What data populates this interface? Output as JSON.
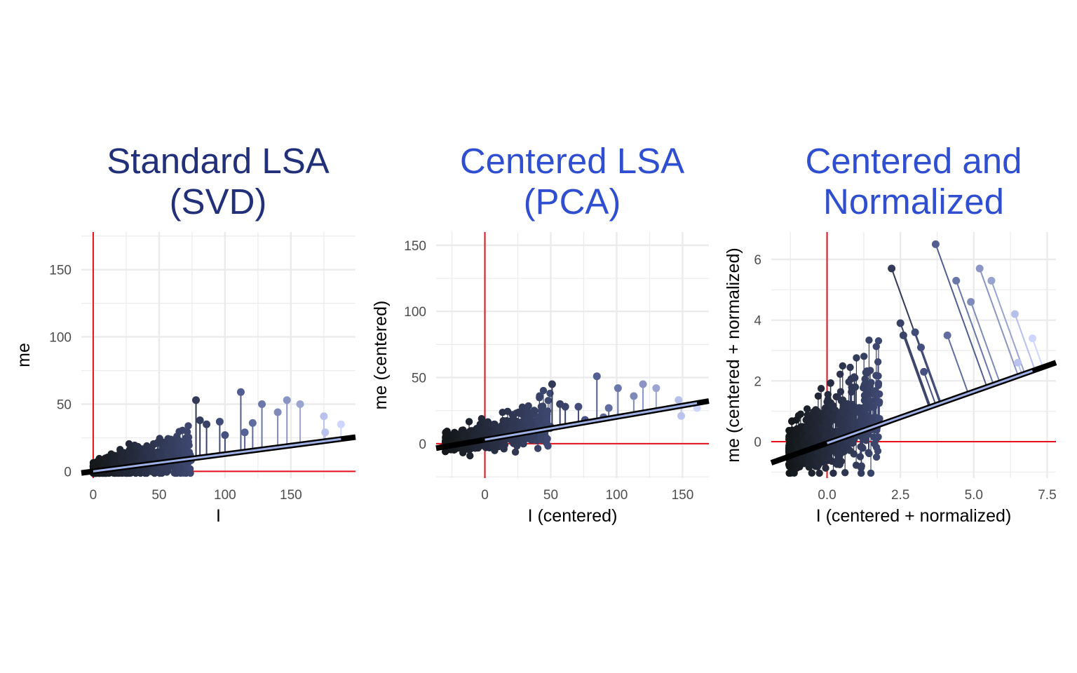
{
  "chart_data": [
    {
      "type": "scatter",
      "title": "Standard LSA\n(SVD)",
      "title_color": "#22307a",
      "xlabel": "I",
      "ylabel": "me",
      "xlim": [
        -9,
        199
      ],
      "ylim": [
        -5,
        178
      ],
      "xticks": [
        0,
        50,
        100,
        150
      ],
      "yticks": [
        0,
        50,
        100,
        150
      ],
      "reference_lines": {
        "x": 0,
        "y": 0,
        "color": "#e8101a"
      },
      "fit_line": {
        "slope": 0.128,
        "intercept": 0
      },
      "points_sample": [
        {
          "x": 78,
          "y": 53
        },
        {
          "x": 81,
          "y": 38
        },
        {
          "x": 86,
          "y": 35
        },
        {
          "x": 96,
          "y": 37
        },
        {
          "x": 100,
          "y": 27
        },
        {
          "x": 112,
          "y": 59
        },
        {
          "x": 115,
          "y": 29
        },
        {
          "x": 121,
          "y": 36
        },
        {
          "x": 128,
          "y": 50
        },
        {
          "x": 140,
          "y": 44
        },
        {
          "x": 147,
          "y": 53
        },
        {
          "x": 157,
          "y": 50
        },
        {
          "x": 175,
          "y": 41
        },
        {
          "x": 176,
          "y": 29
        },
        {
          "x": 188,
          "y": 35
        }
      ]
    },
    {
      "type": "scatter",
      "title": "Centered LSA\n(PCA)",
      "title_color": "#2f4fd0",
      "xlabel": "I (centered)",
      "ylabel": "me (centered)",
      "xlim": [
        -37,
        170
      ],
      "ylim": [
        -26,
        160
      ],
      "xticks": [
        0,
        50,
        100,
        150
      ],
      "yticks": [
        0,
        50,
        100,
        150
      ],
      "reference_lines": {
        "x": 0,
        "y": 0,
        "color": "#e8101a"
      },
      "fit_line": {
        "slope": 0.172,
        "intercept": 3
      },
      "points_sample": [
        {
          "x": 51,
          "y": 45
        },
        {
          "x": 57,
          "y": 30
        },
        {
          "x": 61,
          "y": 28
        },
        {
          "x": 71,
          "y": 28
        },
        {
          "x": 76,
          "y": 18
        },
        {
          "x": 85,
          "y": 51
        },
        {
          "x": 90,
          "y": 20
        },
        {
          "x": 94,
          "y": 27
        },
        {
          "x": 101,
          "y": 42
        },
        {
          "x": 113,
          "y": 36
        },
        {
          "x": 120,
          "y": 45
        },
        {
          "x": 130,
          "y": 42
        },
        {
          "x": 147,
          "y": 33
        },
        {
          "x": 149,
          "y": 21
        },
        {
          "x": 161,
          "y": 27
        }
      ]
    },
    {
      "type": "scatter",
      "title": "Centered and\nNormalized",
      "title_color": "#2f4fd0",
      "xlabel": "I (centered + normalized)",
      "ylabel": "me (centered + normalized)",
      "xlim": [
        -1.9,
        7.8
      ],
      "ylim": [
        -1.2,
        6.9
      ],
      "xticks": [
        0.0,
        2.5,
        5.0,
        7.5
      ],
      "xtick_labels": [
        "0.0",
        "2.5",
        "5.0",
        "7.5"
      ],
      "yticks": [
        0,
        2,
        4,
        6
      ],
      "reference_lines": {
        "x": 0,
        "y": 0,
        "color": "#e8101a"
      },
      "fit_line": {
        "slope": 0.34,
        "intercept": -0.05
      },
      "points_sample": [
        {
          "x": 2.2,
          "y": 5.7
        },
        {
          "x": 2.5,
          "y": 3.9
        },
        {
          "x": 2.6,
          "y": 3.5
        },
        {
          "x": 3.0,
          "y": 3.6
        },
        {
          "x": 3.2,
          "y": 3.1
        },
        {
          "x": 3.3,
          "y": 2.3
        },
        {
          "x": 3.7,
          "y": 6.5
        },
        {
          "x": 4.1,
          "y": 3.5
        },
        {
          "x": 4.4,
          "y": 5.3
        },
        {
          "x": 4.9,
          "y": 4.6
        },
        {
          "x": 5.2,
          "y": 5.7
        },
        {
          "x": 5.6,
          "y": 5.3
        },
        {
          "x": 6.4,
          "y": 4.2
        },
        {
          "x": 6.5,
          "y": 2.6
        },
        {
          "x": 7.0,
          "y": 3.4
        }
      ]
    }
  ],
  "colors": {
    "dark_point": "#15171c",
    "mid_point": "#4a568a",
    "light_point": "#ccd6ff",
    "grid": "#ebebeb",
    "fit_line": "#000000",
    "fit_highlight": "#9fb0e6"
  }
}
